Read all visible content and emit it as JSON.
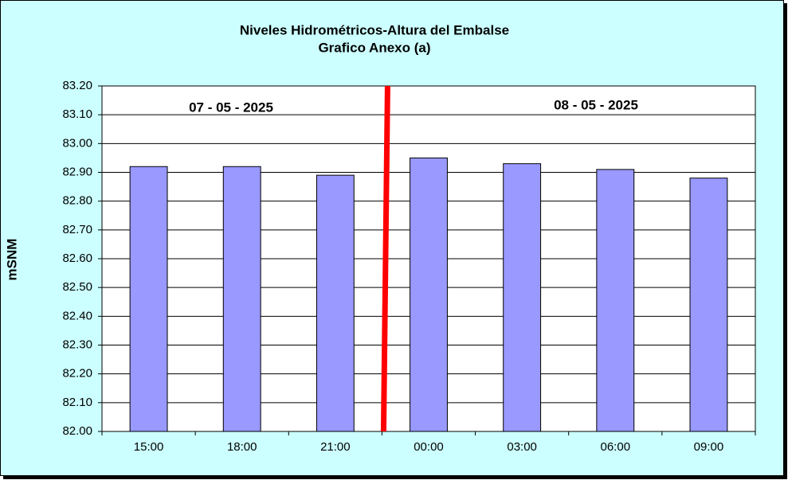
{
  "chart_data": {
    "type": "bar",
    "title": "Niveles Hidrométricos-Altura del Embalse",
    "subtitle": "Grafico Anexo (a)",
    "y_label": "mSNM",
    "annotations": [
      "07 - 05 - 2025",
      "08 - 05 - 2025"
    ],
    "categories": [
      "15:00",
      "18:00",
      "21:00",
      "00:00",
      "03:00",
      "06:00",
      "09:00"
    ],
    "values": [
      82.92,
      82.92,
      82.89,
      82.95,
      82.93,
      82.91,
      82.88
    ],
    "color": "#9999ff",
    "ylim": [
      82.0,
      83.2
    ],
    "yticks": [
      {
        "value": 82.0,
        "label": "82.00"
      },
      {
        "value": 82.1,
        "label": "82.10"
      },
      {
        "value": 82.2,
        "label": "82.20"
      },
      {
        "value": 82.3,
        "label": "82.30"
      },
      {
        "value": 82.4,
        "label": "82.40"
      },
      {
        "value": 82.5,
        "label": "82.50"
      },
      {
        "value": 82.6,
        "label": "82.60"
      },
      {
        "value": 82.7,
        "label": "82.70"
      },
      {
        "value": 82.8,
        "label": "82.80"
      },
      {
        "value": 82.9,
        "label": "82.90"
      },
      {
        "value": 83.0,
        "label": "83.00"
      },
      {
        "value": 83.1,
        "label": "83.10"
      },
      {
        "value": 83.2,
        "label": "83.20"
      }
    ],
    "grid": true
  }
}
